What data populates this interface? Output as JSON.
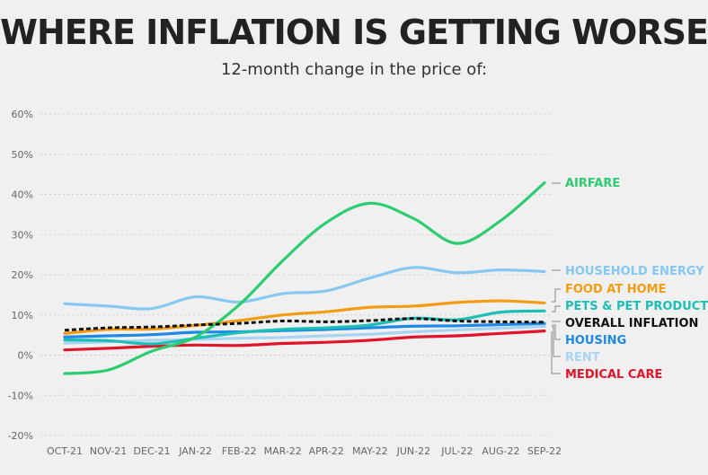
{
  "header": {
    "title": "WHERE INFLATION IS GETTING WORSE",
    "subtitle": "12-month change in the price of:"
  },
  "chart_data": {
    "type": "line",
    "title": "WHERE INFLATION IS GETTING WORSE",
    "subtitle": "12-month change in the price of:",
    "xlabel": "",
    "ylabel": "",
    "ylim": [
      -20,
      60
    ],
    "yticks": [
      "60%",
      "50%",
      "40%",
      "30%",
      "20%",
      "10%",
      "0%",
      "-10%",
      "-20%"
    ],
    "ytick_values": [
      60,
      50,
      40,
      30,
      20,
      10,
      0,
      -10,
      -20
    ],
    "categories": [
      "OCT-21",
      "NOV-21",
      "DEC-21",
      "JAN-22",
      "FEB-22",
      "MAR-22",
      "APR-22",
      "MAY-22",
      "JUN-22",
      "JUL-22",
      "AUG-22",
      "SEP-22"
    ],
    "grid": true,
    "legend": "right-end labels",
    "series": [
      {
        "name": "AIRFARE",
        "color": "#2ecc71",
        "dashed": false,
        "values": [
          -4.6,
          -3.7,
          1.0,
          4.5,
          12.5,
          23.5,
          33.0,
          37.8,
          34.0,
          27.8,
          33.5,
          42.9
        ]
      },
      {
        "name": "HOUSEHOLD ENERGY",
        "color": "#85c8f2",
        "dashed": false,
        "values": [
          12.8,
          12.2,
          11.6,
          14.5,
          13.2,
          15.3,
          16.0,
          19.2,
          21.8,
          20.5,
          21.2,
          20.8
        ]
      },
      {
        "name": "FOOD AT HOME",
        "color": "#f39c12",
        "dashed": false,
        "values": [
          5.4,
          6.4,
          6.5,
          7.4,
          8.6,
          10.0,
          10.8,
          11.9,
          12.2,
          13.1,
          13.5,
          13.0
        ]
      },
      {
        "name": "PETS & PET PRODUCTS",
        "color": "#1bbfb5",
        "dashed": false,
        "values": [
          3.8,
          3.6,
          2.8,
          4.2,
          5.6,
          6.4,
          6.8,
          7.5,
          9.2,
          8.8,
          10.7,
          11.0
        ]
      },
      {
        "name": "OVERALL INFLATION",
        "color": "#111111",
        "dashed": true,
        "values": [
          6.2,
          6.8,
          7.0,
          7.5,
          7.9,
          8.5,
          8.3,
          8.6,
          9.1,
          8.5,
          8.3,
          8.2
        ]
      },
      {
        "name": "HOUSING",
        "color": "#1e88e5",
        "dashed": false,
        "values": [
          4.5,
          4.8,
          5.1,
          5.7,
          5.8,
          6.1,
          6.4,
          6.8,
          7.2,
          7.3,
          7.6,
          7.9
        ]
      },
      {
        "name": "RENT",
        "color": "#a8d4f2",
        "dashed": false,
        "values": [
          3.0,
          3.3,
          3.7,
          3.9,
          4.2,
          4.4,
          4.8,
          5.2,
          5.8,
          6.3,
          6.7,
          7.2
        ]
      },
      {
        "name": "MEDICAL CARE",
        "color": "#e0142a",
        "dashed": false,
        "values": [
          1.3,
          1.7,
          2.2,
          2.5,
          2.4,
          2.9,
          3.2,
          3.7,
          4.5,
          4.8,
          5.4,
          6.0
        ]
      }
    ]
  }
}
